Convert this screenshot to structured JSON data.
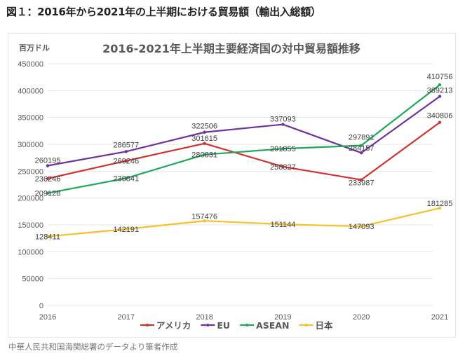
{
  "page": {
    "heading": "図１：2016年から2021年の上半期における貿易額（輸出入総額）",
    "caption": "中華人民共和国海関総署のデータより筆者作成"
  },
  "chart_data": {
    "type": "line",
    "title": "2016-2021年上半期主要経済国の対中貿易額推移",
    "ylabel": "百万ドル",
    "xlabel": "",
    "x": [
      "2016",
      "2017",
      "2018",
      "2019",
      "2020",
      "2021"
    ],
    "ylim": [
      0,
      450000
    ],
    "yticks": [
      0,
      50000,
      100000,
      150000,
      200000,
      250000,
      300000,
      350000,
      400000,
      450000
    ],
    "ytick_labels": [
      "0",
      "50000",
      "100000",
      "150000",
      "200000",
      "250000",
      "300000",
      "350000",
      "400000",
      "450000"
    ],
    "grid": true,
    "legend_position": "bottom",
    "series": [
      {
        "name": "アメリカ",
        "color": "#d03232",
        "values": [
          236246,
          269246,
          301615,
          258327,
          233987,
          340806
        ]
      },
      {
        "name": "EU",
        "color": "#7030a0",
        "values": [
          260195,
          286577,
          322506,
          337093,
          284157,
          389213
        ]
      },
      {
        "name": "ASEAN",
        "color": "#1fa85a",
        "values": [
          209128,
          236841,
          280831,
          291855,
          297891,
          410756
        ]
      },
      {
        "name": "日本",
        "color": "#f5c22a",
        "values": [
          128411,
          142191,
          157476,
          151144,
          147093,
          181285
        ]
      }
    ]
  }
}
